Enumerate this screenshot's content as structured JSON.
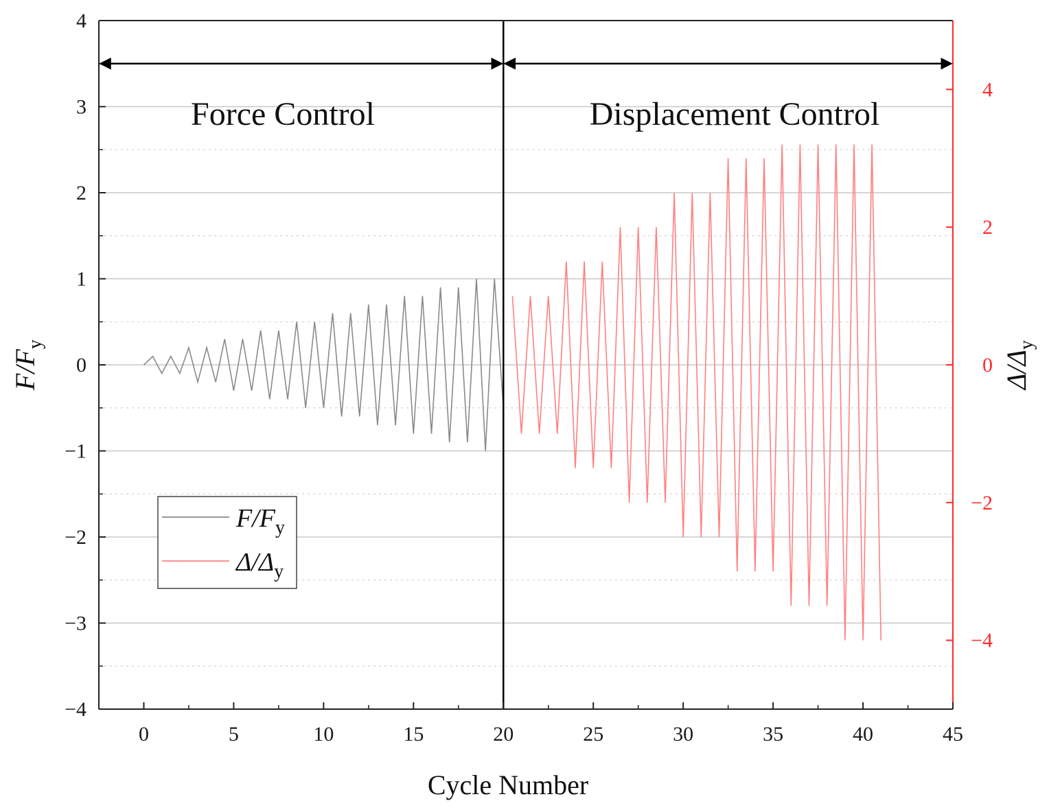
{
  "chart_data": {
    "type": "line",
    "x_label": "Cycle Number",
    "y_left_label": "F/F",
    "y_left_label_sub": "y",
    "y_right_label": "Δ/Δ",
    "y_right_label_sub": "y",
    "x_range": [
      -2.5,
      45
    ],
    "x_ticks": [
      0,
      5,
      10,
      15,
      20,
      25,
      30,
      35,
      40,
      45
    ],
    "y_left_range": [
      -4,
      4
    ],
    "y_left_ticks": [
      -4,
      -3,
      -2,
      -1,
      0,
      1,
      2,
      3,
      4
    ],
    "y_right_range": [
      -5,
      5
    ],
    "y_right_ticks": [
      -4,
      -2,
      0,
      2,
      4
    ],
    "grid": true,
    "divider_x": 20,
    "regions": [
      {
        "label": "Force Control",
        "x_start": -2.5,
        "x_end": 20,
        "arrow_y": 3.5
      },
      {
        "label": "Displacement Control",
        "x_start": 20,
        "x_end": 45,
        "arrow_y": 3.5
      }
    ],
    "legend": {
      "position": "lower-left",
      "entries": [
        {
          "label": "F/F",
          "sub": "y",
          "color": "#8a8a8a"
        },
        {
          "label": "Δ/Δ",
          "sub": "y",
          "color": "#ff8080"
        }
      ]
    },
    "series": [
      {
        "name": "F/Fy",
        "axis": "left",
        "color": "#8a8a8a",
        "x": [
          0,
          0.5,
          1,
          1.5,
          2,
          2.5,
          3,
          3.5,
          4,
          4.5,
          5,
          5.5,
          6,
          6.5,
          7,
          7.5,
          8,
          8.5,
          9,
          9.5,
          10,
          10.5,
          11,
          11.5,
          12,
          12.5,
          13,
          13.5,
          14,
          14.5,
          15,
          15.5,
          16,
          16.5,
          17,
          17.5,
          18,
          18.5,
          19,
          19.5,
          20
        ],
        "y": [
          0,
          0.1,
          -0.1,
          0.1,
          -0.1,
          0.2,
          -0.2,
          0.2,
          -0.2,
          0.3,
          -0.3,
          0.3,
          -0.3,
          0.4,
          -0.4,
          0.4,
          -0.4,
          0.5,
          -0.5,
          0.5,
          -0.5,
          0.6,
          -0.6,
          0.6,
          -0.6,
          0.7,
          -0.7,
          0.7,
          -0.7,
          0.8,
          -0.8,
          0.8,
          -0.8,
          0.9,
          -0.9,
          0.9,
          -0.9,
          1.0,
          -1.0,
          1.0,
          -0.5
        ]
      },
      {
        "name": "Δ/Δy",
        "axis": "right",
        "color": "#ff8080",
        "x": [
          20.5,
          21,
          21.5,
          22,
          22.5,
          23,
          23.5,
          24,
          24.5,
          25,
          25.5,
          26,
          26.5,
          27,
          27.5,
          28,
          28.5,
          29,
          29.5,
          30,
          30.5,
          31,
          31.5,
          32,
          32.5,
          33,
          33.5,
          34,
          34.5,
          35,
          35.5,
          36,
          36.5,
          37,
          37.5,
          38,
          38.5,
          39,
          39.5,
          40,
          40.5,
          41
        ],
        "y": [
          1,
          -1,
          1,
          -1,
          1,
          -1,
          1.5,
          -1.5,
          1.5,
          -1.5,
          1.5,
          -1.5,
          2,
          -2,
          2,
          -2,
          2,
          -2,
          2.5,
          -2.5,
          2.5,
          -2.5,
          2.5,
          -2.5,
          3,
          -3,
          3,
          -3,
          3,
          -3,
          3.2,
          -3.5,
          3.2,
          -3.5,
          3.2,
          -3.5,
          3.2,
          -4,
          3.2,
          -4,
          3.2,
          -4
        ]
      }
    ]
  }
}
